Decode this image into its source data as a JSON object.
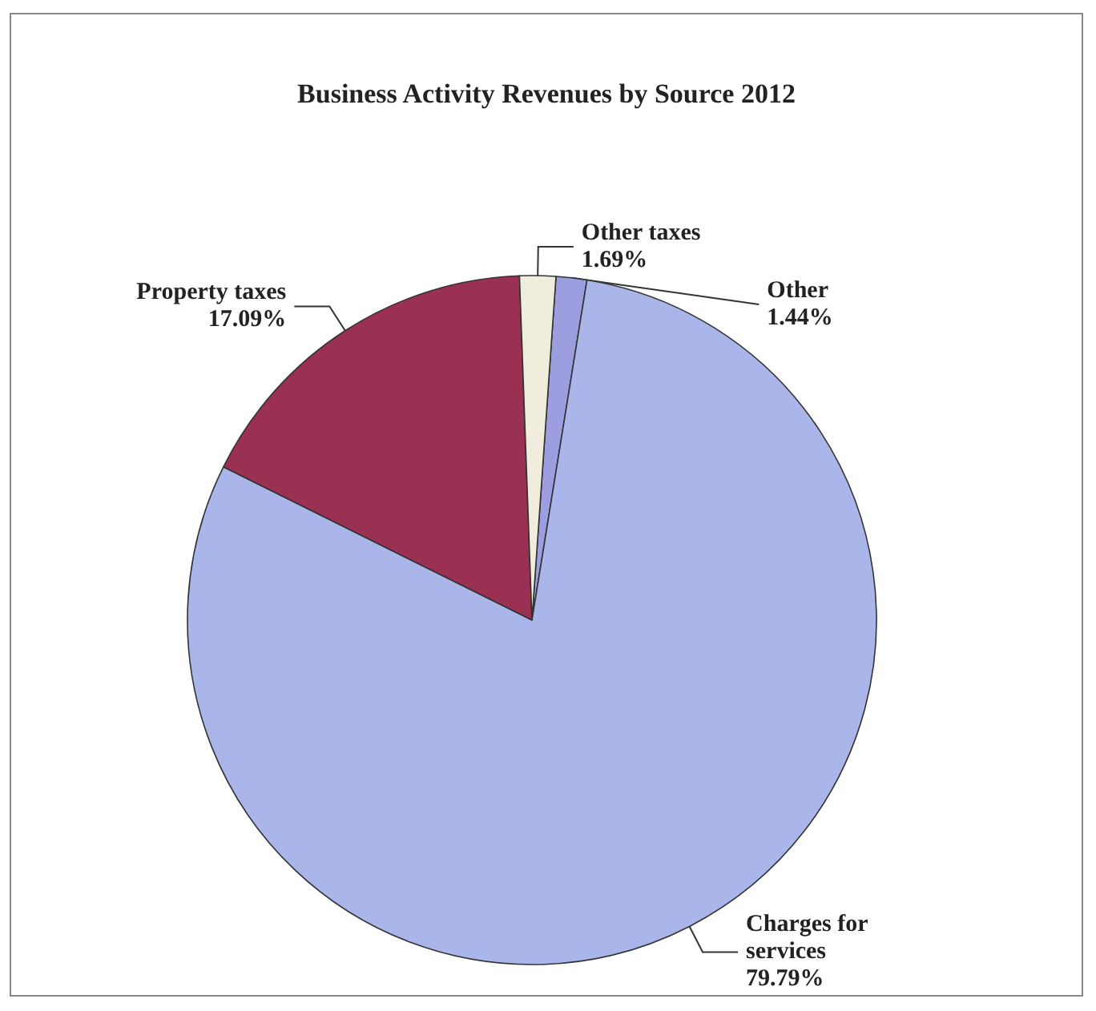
{
  "chart_data": {
    "type": "pie",
    "title": "Business Activity Revenues by Source 2012",
    "categories": [
      "Other",
      "Charges for services",
      "Property taxes",
      "Other taxes"
    ],
    "values": [
      1.44,
      79.79,
      17.09,
      1.69
    ],
    "colors": [
      "#9c9ee0",
      "#aab6ea",
      "#9b3152",
      "#f1eddc"
    ],
    "value_labels": [
      "1.44%",
      "79.79%",
      "17.09%",
      "1.69%"
    ],
    "legend": false
  }
}
